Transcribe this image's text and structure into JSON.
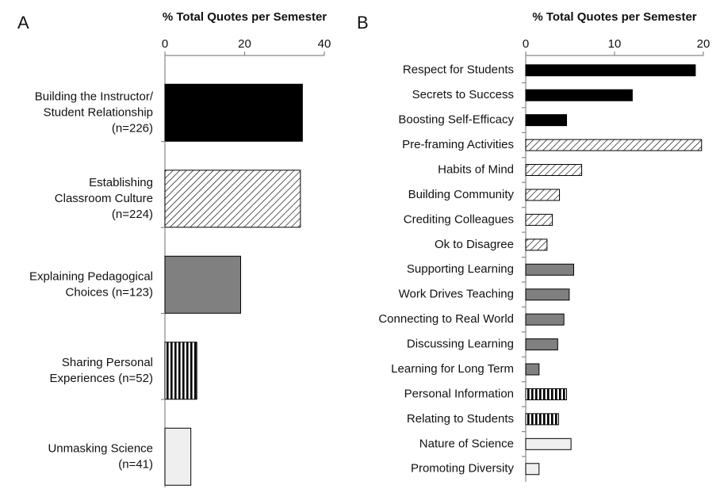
{
  "chart_data": [
    {
      "type": "bar",
      "orientation": "horizontal",
      "panel": "A",
      "title": "% Total Quotes per Semester",
      "categories": [
        [
          "Building the Instructor/",
          "Student Relationship",
          "(n=226)"
        ],
        [
          "Establishing",
          "Classroom Culture",
          "(n=224)"
        ],
        [
          "Explaining Pedagogical",
          "Choices (n=123)"
        ],
        [
          "Sharing Personal",
          "Experiences (n=52)"
        ],
        [
          "Unmasking Science",
          "(n=41)"
        ]
      ],
      "values": [
        34.5,
        34,
        19,
        8,
        6.5
      ],
      "styles": [
        "black",
        "diagonal-hatch",
        "gray",
        "vertical-stripes",
        "light-gray"
      ],
      "xlim": [
        0,
        40
      ],
      "xticks": [
        0,
        20,
        40
      ]
    },
    {
      "type": "bar",
      "orientation": "horizontal",
      "panel": "B",
      "title": "% Total Quotes per Semester",
      "categories": [
        "Respect for Students",
        "Secrets to Success",
        "Boosting Self-Efficacy",
        "Pre-framing Activities",
        "Habits of Mind",
        "Building Community",
        "Crediting Colleagues",
        "Ok to Disagree",
        "Supporting Learning",
        "Work Drives Teaching",
        "Connecting to Real World",
        "Discussing Learning",
        "Learning for Long Term",
        "Personal Information",
        "Relating to Students",
        "Nature of Science",
        "Promoting Diversity"
      ],
      "values": [
        19.1,
        12,
        4.6,
        19.8,
        6.3,
        3.8,
        3,
        2.4,
        5.4,
        4.9,
        4.3,
        3.6,
        1.5,
        4.6,
        3.7,
        5.1,
        1.5
      ],
      "styles": [
        "black",
        "black",
        "black",
        "diagonal-hatch",
        "diagonal-hatch",
        "diagonal-hatch",
        "diagonal-hatch",
        "diagonal-hatch",
        "gray",
        "gray",
        "gray",
        "gray",
        "gray",
        "vertical-stripes",
        "vertical-stripes",
        "light-gray",
        "light-gray"
      ],
      "xlim": [
        0,
        20
      ],
      "xticks": [
        0,
        10,
        20
      ]
    }
  ]
}
